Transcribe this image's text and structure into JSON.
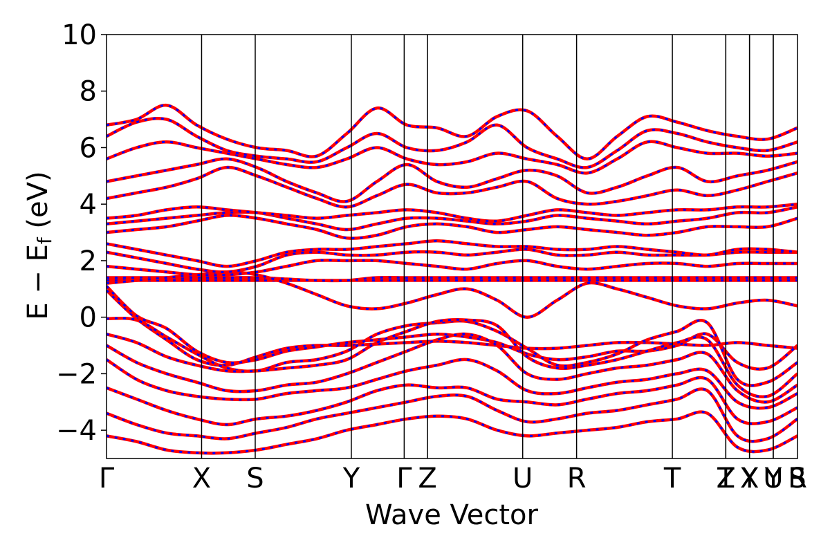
{
  "chart_data": {
    "type": "line",
    "title": "",
    "xlabel": "Wave Vector",
    "ylabel_main": "E − E",
    "ylabel_sub": "f",
    "ylabel_unit": " (eV)",
    "ylim": [
      -5,
      10
    ],
    "yticks": [
      -4,
      -2,
      0,
      2,
      4,
      6,
      8,
      10
    ],
    "ytick_labels": [
      "−4",
      "−2",
      "0",
      "2",
      "4",
      "6",
      "8",
      "10"
    ],
    "xlim": [
      0,
      1
    ],
    "kpoints": [
      {
        "label": "Γ",
        "pos": 0.0
      },
      {
        "label": "X",
        "pos": 0.1376
      },
      {
        "label": "S",
        "pos": 0.2152
      },
      {
        "label": "Y",
        "pos": 0.3543
      },
      {
        "label": "Γ",
        "pos": 0.4308
      },
      {
        "label": "Z",
        "pos": 0.4646
      },
      {
        "label": "U",
        "pos": 0.6023
      },
      {
        "label": "R",
        "pos": 0.6803
      },
      {
        "label": "T",
        "pos": 0.8189
      },
      {
        "label": "Z",
        "pos": 0.8962
      },
      {
        "label": "T",
        "pos": 0.8962
      },
      {
        "label": "Y",
        "pos": 0.9306
      },
      {
        "label": "X",
        "pos": 0.9306
      },
      {
        "label": "U",
        "pos": 0.9649
      },
      {
        "label": "Y",
        "pos": 0.9649
      },
      {
        "label": "S",
        "pos": 1.0
      },
      {
        "label": "R",
        "pos": 1.0
      }
    ],
    "series": [
      {
        "color": "#ff0000",
        "style": "solid"
      },
      {
        "color": "#0000ff",
        "style": "dashed"
      }
    ],
    "bands": [
      [
        0.95,
        -0.05,
        -0.8,
        -1.5,
        -1.7,
        -1.4,
        -1.1,
        -1.0,
        -1.0,
        -0.95,
        -0.9,
        -0.85,
        -0.9,
        -1.0,
        -1.1,
        -1.1,
        -1.0,
        -0.9,
        -0.9,
        -0.95,
        -1.0,
        -0.9,
        -1.0,
        -1.1
      ],
      [
        1.1,
        0.05,
        -0.4,
        -1.2,
        -1.6,
        -1.5,
        -1.2,
        -1.05,
        -0.9,
        -0.8,
        -0.7,
        -0.6,
        -0.7,
        -0.9,
        -1.3,
        -1.5,
        -1.4,
        -1.2,
        -1.2,
        -1.0,
        -0.6,
        -1.6,
        -1.8,
        -1.0
      ],
      [
        -0.05,
        -0.1,
        -0.7,
        -1.3,
        -1.8,
        -1.9,
        -1.6,
        -1.5,
        -1.2,
        -0.6,
        -0.3,
        -0.2,
        -0.15,
        -0.5,
        -1.1,
        -1.7,
        -1.6,
        -1.3,
        -0.8,
        -0.5,
        -0.2,
        -2.2,
        -2.3,
        -1.6
      ],
      [
        -0.6,
        -0.9,
        -1.4,
        -1.7,
        -1.9,
        -1.9,
        -1.8,
        -1.7,
        -1.5,
        -0.9,
        -0.5,
        -0.15,
        -0.1,
        -0.3,
        -1.4,
        -1.8,
        -1.7,
        -1.5,
        -1.2,
        -0.9,
        -0.8,
        -2.4,
        -2.8,
        -2.0
      ],
      [
        -1.0,
        -1.6,
        -2.0,
        -2.3,
        -2.6,
        -2.6,
        -2.4,
        -2.3,
        -2.0,
        -1.6,
        -1.2,
        -0.8,
        -0.6,
        -1.0,
        -2.0,
        -2.2,
        -2.0,
        -1.8,
        -1.7,
        -1.5,
        -1.3,
        -2.6,
        -3.0,
        -2.4
      ],
      [
        -1.5,
        -2.2,
        -2.6,
        -2.8,
        -2.9,
        -2.9,
        -2.7,
        -2.6,
        -2.5,
        -2.2,
        -1.9,
        -1.7,
        -1.5,
        -1.9,
        -2.6,
        -2.7,
        -2.5,
        -2.3,
        -2.2,
        -2.0,
        -1.9,
        -3.0,
        -3.2,
        -2.7
      ],
      [
        -2.5,
        -2.9,
        -3.3,
        -3.6,
        -3.8,
        -3.6,
        -3.5,
        -3.3,
        -3.0,
        -2.6,
        -2.4,
        -2.5,
        -2.5,
        -2.9,
        -3.0,
        -3.1,
        -2.9,
        -2.7,
        -2.6,
        -2.4,
        -2.2,
        -3.6,
        -3.7,
        -3.2
      ],
      [
        -3.4,
        -3.8,
        -4.1,
        -4.2,
        -4.3,
        -4.1,
        -3.9,
        -3.6,
        -3.4,
        -3.2,
        -3.0,
        -2.8,
        -2.8,
        -3.3,
        -3.7,
        -3.6,
        -3.4,
        -3.3,
        -3.1,
        -2.9,
        -2.6,
        -4.2,
        -4.3,
        -3.6
      ],
      [
        -4.2,
        -4.4,
        -4.7,
        -4.8,
        -4.8,
        -4.7,
        -4.5,
        -4.3,
        -4.0,
        -3.8,
        -3.6,
        -3.5,
        -3.6,
        -4.0,
        -4.2,
        -4.1,
        -4.0,
        -3.9,
        -3.7,
        -3.6,
        -3.4,
        -4.6,
        -4.7,
        -4.2
      ],
      [
        1.3,
        1.3,
        1.3,
        1.3,
        1.3,
        1.3,
        1.3,
        1.3,
        1.3,
        1.3,
        1.3,
        1.3,
        1.3,
        1.3,
        1.3,
        1.3,
        1.3,
        1.3,
        1.3,
        1.3,
        1.3,
        1.3,
        1.3,
        1.3
      ],
      [
        1.4,
        1.4,
        1.4,
        1.4,
        1.4,
        1.4,
        1.35,
        1.3,
        1.3,
        1.4,
        1.4,
        1.4,
        1.4,
        1.4,
        1.4,
        1.4,
        1.4,
        1.4,
        1.4,
        1.4,
        1.4,
        1.4,
        1.4,
        1.4
      ],
      [
        1.2,
        1.3,
        1.4,
        1.5,
        1.6,
        1.5,
        1.2,
        0.8,
        0.4,
        0.3,
        0.5,
        0.8,
        1.0,
        0.6,
        0.0,
        0.6,
        1.2,
        1.0,
        0.7,
        0.4,
        0.3,
        0.5,
        0.6,
        0.4
      ],
      [
        1.8,
        1.7,
        1.6,
        1.5,
        1.5,
        1.6,
        1.8,
        2.0,
        2.0,
        2.0,
        1.9,
        1.8,
        1.7,
        1.9,
        2.0,
        1.8,
        1.7,
        1.8,
        1.9,
        1.9,
        1.8,
        1.9,
        1.9,
        1.9
      ],
      [
        2.3,
        2.1,
        1.9,
        1.7,
        1.6,
        1.8,
        2.2,
        2.3,
        2.2,
        2.2,
        2.3,
        2.3,
        2.2,
        2.3,
        2.4,
        2.2,
        2.2,
        2.3,
        2.2,
        2.2,
        2.2,
        2.3,
        2.3,
        2.3
      ],
      [
        2.6,
        2.4,
        2.2,
        2.0,
        1.8,
        2.0,
        2.3,
        2.4,
        2.4,
        2.5,
        2.6,
        2.7,
        2.6,
        2.5,
        2.5,
        2.4,
        2.4,
        2.5,
        2.4,
        2.3,
        2.2,
        2.4,
        2.4,
        2.3
      ],
      [
        3.0,
        3.1,
        3.2,
        3.4,
        3.6,
        3.5,
        3.3,
        3.1,
        2.8,
        2.9,
        3.2,
        3.3,
        3.2,
        3.0,
        3.1,
        3.2,
        3.1,
        3.0,
        2.9,
        3.0,
        3.2,
        3.2,
        3.2,
        3.5
      ],
      [
        3.3,
        3.4,
        3.5,
        3.6,
        3.7,
        3.7,
        3.5,
        3.3,
        3.1,
        3.3,
        3.5,
        3.5,
        3.4,
        3.3,
        3.4,
        3.6,
        3.5,
        3.4,
        3.3,
        3.4,
        3.5,
        3.7,
        3.7,
        3.9
      ],
      [
        3.5,
        3.6,
        3.8,
        3.9,
        3.8,
        3.7,
        3.6,
        3.5,
        3.6,
        3.7,
        3.8,
        3.7,
        3.5,
        3.4,
        3.6,
        3.8,
        3.7,
        3.6,
        3.7,
        3.8,
        3.8,
        3.9,
        3.9,
        4.0
      ],
      [
        4.2,
        4.4,
        4.6,
        4.9,
        5.3,
        5.0,
        4.6,
        4.2,
        3.9,
        4.3,
        4.7,
        4.4,
        4.4,
        4.6,
        4.8,
        4.2,
        4.0,
        4.1,
        4.3,
        4.5,
        4.3,
        4.5,
        4.8,
        5.1
      ],
      [
        4.8,
        5.0,
        5.2,
        5.4,
        5.6,
        5.3,
        4.8,
        4.4,
        4.1,
        4.8,
        5.4,
        4.8,
        4.6,
        4.9,
        5.2,
        5.0,
        4.4,
        4.6,
        5.0,
        5.3,
        4.8,
        5.0,
        5.2,
        5.5
      ],
      [
        5.6,
        6.0,
        6.2,
        6.0,
        5.8,
        5.6,
        5.4,
        5.3,
        5.6,
        6.0,
        5.6,
        5.4,
        5.5,
        5.8,
        5.6,
        5.4,
        5.1,
        5.6,
        6.2,
        6.0,
        5.8,
        5.8,
        5.7,
        5.8
      ],
      [
        6.4,
        6.9,
        7.0,
        6.4,
        5.9,
        5.7,
        5.6,
        5.5,
        6.0,
        6.5,
        6.0,
        5.9,
        6.2,
        6.8,
        6.0,
        5.6,
        5.3,
        5.9,
        6.6,
        6.5,
        6.2,
        6.0,
        5.9,
        6.2
      ],
      [
        6.8,
        7.0,
        7.5,
        6.8,
        6.3,
        6.0,
        5.9,
        5.7,
        6.5,
        7.4,
        6.8,
        6.7,
        6.4,
        7.1,
        7.3,
        6.4,
        5.6,
        6.4,
        7.1,
        6.9,
        6.6,
        6.4,
        6.3,
        6.7
      ]
    ]
  }
}
